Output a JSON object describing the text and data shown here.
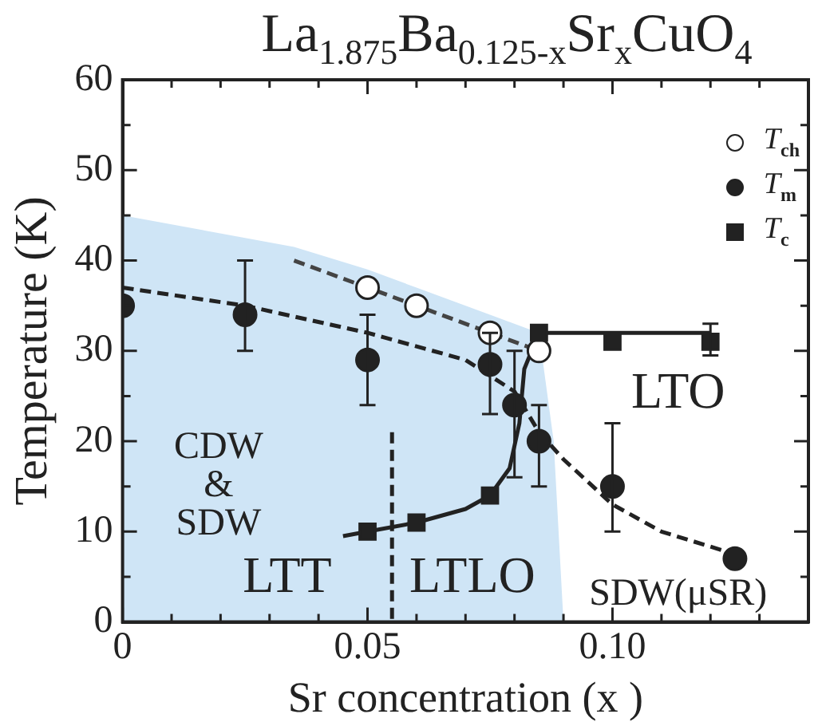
{
  "chart_data": {
    "type": "scatter",
    "title": "La$_{1.875}$Ba$_{0.125-x}$Sr$_{x}$CuO$_{4}$",
    "xlabel": "Sr concentration (x )",
    "ylabel": "Temperature (K)",
    "xlim": [
      0,
      0.14
    ],
    "ylim": [
      0,
      60
    ],
    "xticks": [
      0,
      {
        "value": 0.01,
        "label": null
      },
      {
        "value": 0.02,
        "label": null
      },
      {
        "value": 0.03,
        "label": null
      },
      {
        "value": 0.04,
        "label": null
      },
      0.05,
      {
        "value": 0.06,
        "label": null
      },
      {
        "value": 0.07,
        "label": null
      },
      {
        "value": 0.08,
        "label": null
      },
      {
        "value": 0.09,
        "label": null
      },
      {
        "value": 0.1,
        "label": "0.10"
      },
      {
        "value": 0.11,
        "label": null
      },
      {
        "value": 0.12,
        "label": null
      },
      {
        "value": 0.13,
        "label": null
      }
    ],
    "yticks": [
      0,
      {
        "value": 5,
        "label": null
      },
      10,
      {
        "value": 15,
        "label": null
      },
      20,
      {
        "value": 25,
        "label": null
      },
      30,
      {
        "value": 35,
        "label": null
      },
      40,
      {
        "value": 45,
        "label": null
      },
      50,
      {
        "value": 55,
        "label": null
      },
      60
    ],
    "grid": false,
    "legend": "top right",
    "series": [
      {
        "type": "area",
        "color": "#cfe5f6",
        "x": [
          0,
          0.035,
          0.05,
          0.06,
          0.075,
          0.085,
          0.088,
          0.09
        ],
        "values": [
          45,
          41.5,
          39,
          37,
          34,
          32,
          20,
          0
        ]
      },
      {
        "type": "line",
        "color": "#222222",
        "line_style": "dashed",
        "x": [
          0,
          0.025,
          0.05,
          0.07,
          0.08,
          0.085,
          0.09,
          0.1,
          0.11,
          0.125
        ],
        "values": [
          37,
          35,
          32,
          29,
          25.5,
          21,
          18,
          13,
          10,
          7.5
        ]
      },
      {
        "type": "line",
        "color": "#444444",
        "line_style": "dashed",
        "x": [
          0.035,
          0.05,
          0.06,
          0.075,
          0.085
        ],
        "values": [
          40,
          37,
          35,
          32,
          30
        ]
      },
      {
        "type": "line",
        "color": "#222222",
        "line_style": "solid",
        "x": [
          0.045,
          0.05,
          0.06,
          0.07,
          0.075,
          0.079,
          0.081,
          0.082,
          0.085,
          0.12
        ],
        "values": [
          9.5,
          10,
          11,
          12.5,
          14,
          17,
          22,
          28,
          32,
          32
        ]
      },
      {
        "type": "line",
        "color": "#222222",
        "line_style": "dashed",
        "x": [
          0.055,
          0.055
        ],
        "values": [
          21,
          0
        ]
      },
      {
        "name": "T$_{ch}$",
        "marker": "circle",
        "color": "#ffffff",
        "x": [
          0.05,
          0.06,
          0.075,
          0.085
        ],
        "values": [
          37,
          35,
          32,
          30
        ]
      },
      {
        "name": "T$_{m}$",
        "marker": "circle",
        "color": "#222222",
        "x": [
          0,
          0.025,
          0.05,
          0.075,
          0.08,
          0.085,
          0.1,
          0.125
        ],
        "values": [
          35,
          34,
          29,
          28.5,
          24,
          20,
          15,
          7
        ],
        "errors": [
          null,
          [
            30,
            40
          ],
          [
            24,
            34
          ],
          [
            23,
            32
          ],
          [
            16,
            30
          ],
          [
            15,
            24
          ],
          [
            10,
            22
          ],
          null
        ]
      },
      {
        "name": "T$_{c}$",
        "marker": "square",
        "color": "#222222",
        "x": [
          0.05,
          0.06,
          0.075,
          0.085,
          0.1,
          0.12
        ],
        "values": [
          10,
          11,
          14,
          32,
          31,
          31
        ],
        "errors": [
          null,
          null,
          null,
          null,
          null,
          [
            29.5,
            33
          ]
        ]
      }
    ],
    "annotations": [
      "CDW\n&\nSDW",
      "LTT",
      "LTLO",
      "LTO",
      "SDW(μSR)"
    ]
  }
}
